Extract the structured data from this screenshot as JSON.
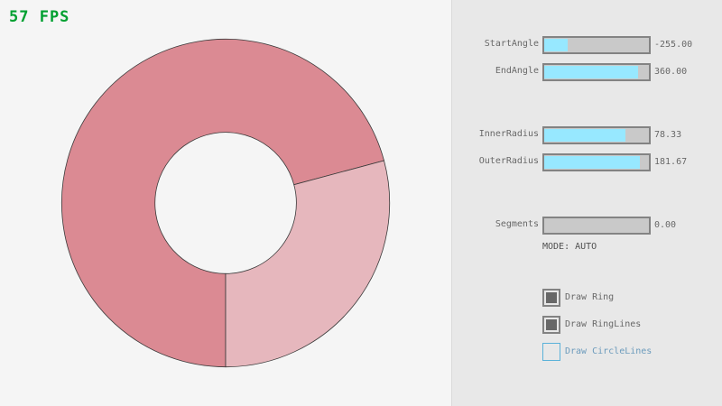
{
  "fps": "57 FPS",
  "ring": {
    "start_angle": -255.0,
    "end_angle": 360.0,
    "inner_radius": 78.33,
    "outer_radius": 181.67,
    "colors": {
      "primary": "#DB8A93",
      "secondary": "#E6B7BD",
      "outline": "#3a3a3a"
    }
  },
  "controls": {
    "sliders": [
      {
        "label": "StartAngle",
        "value": "-255.00",
        "fill": 0.22
      },
      {
        "label": "EndAngle",
        "value": "360.00",
        "fill": 0.9
      },
      {
        "label": "InnerRadius",
        "value": "78.33",
        "fill": 0.78
      },
      {
        "label": "OuterRadius",
        "value": "181.67",
        "fill": 0.91
      },
      {
        "label": "Segments",
        "value": "0.00",
        "fill": 0
      }
    ],
    "mode": "MODE: AUTO",
    "checkboxes": [
      {
        "label": "Draw Ring",
        "checked": true
      },
      {
        "label": "Draw RingLines",
        "checked": true
      },
      {
        "label": "Draw CircleLines",
        "checked": false
      }
    ]
  },
  "colors": {
    "slider_fill": "#97E8FF",
    "fps": "#00A030"
  }
}
